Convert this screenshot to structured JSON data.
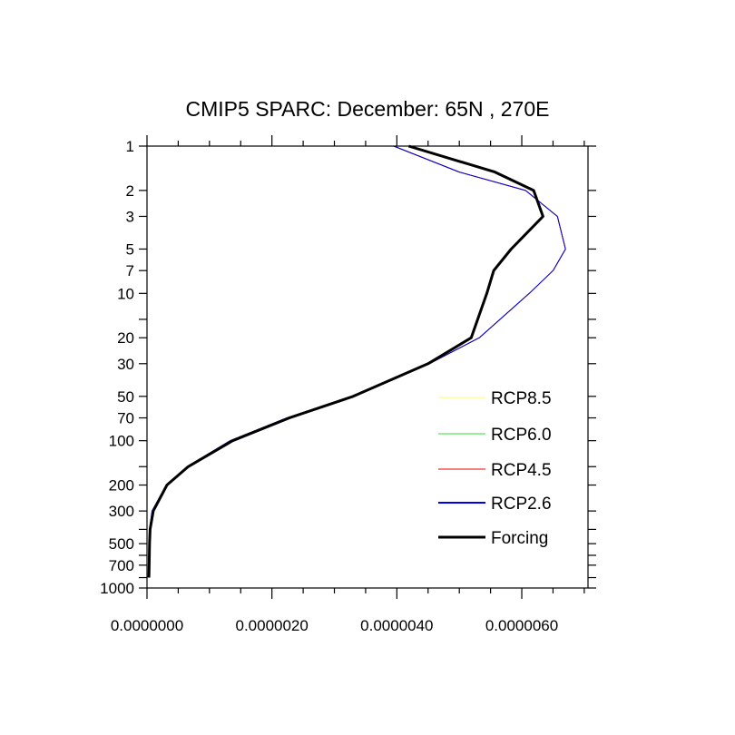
{
  "chart_data": {
    "type": "line",
    "title": "CMIP5 SPARC: December: 65N , 270E",
    "xlabel": "",
    "ylabel": "",
    "xlim": [
      0,
      7.06e-06
    ],
    "ylim": [
      1000,
      1
    ],
    "yscale": "log",
    "grid": false,
    "legend_placement": "lower-right",
    "xticks": [
      0,
      2e-06,
      4e-06,
      6e-06
    ],
    "xtick_labels": [
      "0.0000000",
      "0.0000020",
      "0.0000040",
      "0.0000060"
    ],
    "yticks": [
      1,
      2,
      3,
      5,
      7,
      10,
      20,
      30,
      50,
      70,
      100,
      200,
      300,
      500,
      700,
      1000
    ],
    "ytick_labels": [
      "1",
      "2",
      "3",
      "5",
      "7",
      "10",
      "20",
      "30",
      "50",
      "70",
      "100",
      "200",
      "300",
      "500",
      "700",
      "1000"
    ],
    "pressure": [
      1,
      1.5,
      2,
      3,
      5,
      7,
      10,
      20,
      30,
      50,
      70,
      100,
      150,
      200,
      300,
      400,
      500,
      700,
      850
    ],
    "series": [
      {
        "name": "RCP8.5",
        "color": "#ffff66",
        "width": 1,
        "values": [
          3.95e-06,
          5e-06,
          6.06e-06,
          6.57e-06,
          6.7e-06,
          6.5e-06,
          6.12e-06,
          5.32e-06,
          4.52e-06,
          3.27e-06,
          2.24e-06,
          1.33e-06,
          6.4e-07,
          3.1e-07,
          9e-08,
          5e-08,
          4e-08,
          3.5e-08,
          3e-08
        ]
      },
      {
        "name": "RCP6.0",
        "color": "#33dd33",
        "width": 1,
        "values": [
          3.95e-06,
          5e-06,
          6.06e-06,
          6.57e-06,
          6.7e-06,
          6.5e-06,
          6.12e-06,
          5.32e-06,
          4.52e-06,
          3.27e-06,
          2.24e-06,
          1.33e-06,
          6.4e-07,
          3.1e-07,
          9e-08,
          5e-08,
          4e-08,
          3.5e-08,
          3e-08
        ]
      },
      {
        "name": "RCP4.5",
        "color": "#ee0000",
        "width": 1,
        "values": [
          3.95e-06,
          5e-06,
          6.06e-06,
          6.57e-06,
          6.7e-06,
          6.5e-06,
          6.12e-06,
          5.32e-06,
          4.52e-06,
          3.27e-06,
          2.24e-06,
          1.33e-06,
          6.4e-07,
          3.1e-07,
          9e-08,
          5e-08,
          4e-08,
          3.5e-08,
          3e-08
        ]
      },
      {
        "name": "RCP2.6",
        "color": "#0000ee",
        "width": 1,
        "values": [
          3.95e-06,
          5e-06,
          6.06e-06,
          6.57e-06,
          6.7e-06,
          6.5e-06,
          6.12e-06,
          5.32e-06,
          4.52e-06,
          3.27e-06,
          2.24e-06,
          1.33e-06,
          6.4e-07,
          3.1e-07,
          8e-08,
          4e-08,
          3e-08,
          2.5e-08,
          2e-08
        ]
      },
      {
        "name": "Forcing",
        "color": "#000000",
        "width": 3,
        "values": [
          4.19e-06,
          5.57e-06,
          6.19e-06,
          6.34e-06,
          5.83e-06,
          5.55e-06,
          5.44e-06,
          5.19e-06,
          4.5e-06,
          3.3e-06,
          2.28e-06,
          1.37e-06,
          6.6e-07,
          3.2e-07,
          1e-07,
          5e-08,
          4e-08,
          3.5e-08,
          3e-08
        ]
      }
    ]
  }
}
